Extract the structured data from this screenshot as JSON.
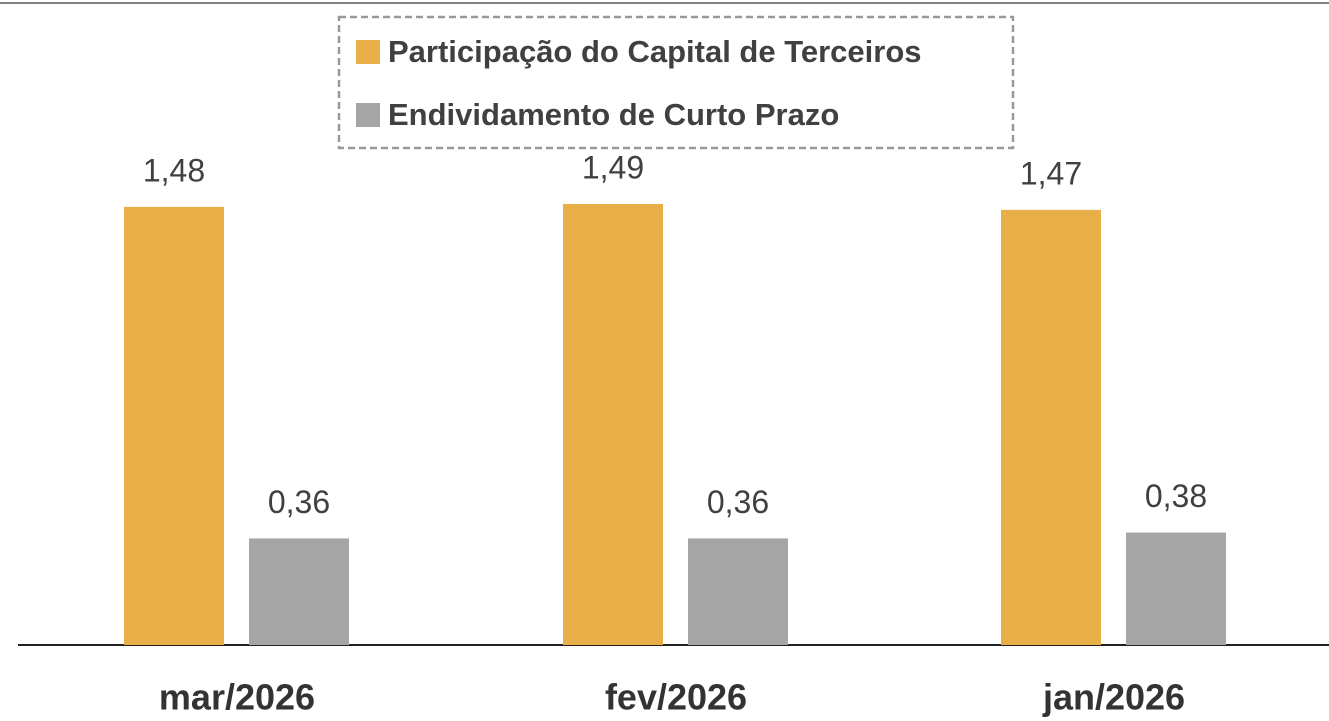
{
  "chart_data": {
    "type": "bar",
    "categories": [
      "mar/2026",
      "fev/2026",
      "jan/2026"
    ],
    "series": [
      {
        "name": "Participação do Capital de Terceiros",
        "color": "#E8AE48",
        "values": [
          1.48,
          1.49,
          1.47
        ],
        "value_labels": [
          "1,48",
          "1,49",
          "1,47"
        ]
      },
      {
        "name": "Endividamento de Curto Prazo",
        "color": "#A5A5A5",
        "values": [
          0.36,
          0.36,
          0.38
        ],
        "value_labels": [
          "0,36",
          "0,36",
          "0,38"
        ]
      }
    ]
  }
}
